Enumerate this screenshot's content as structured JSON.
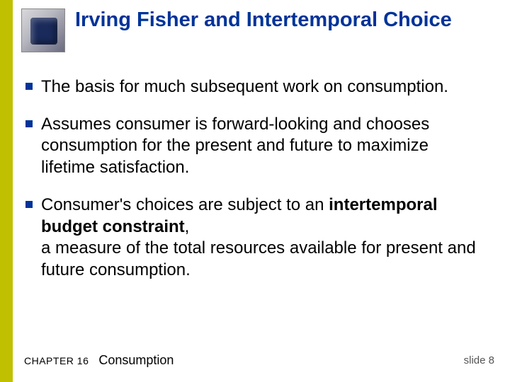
{
  "colors": {
    "side_bar": "#c0c000",
    "title": "#003399",
    "bullet": "#003399",
    "body_text": "#000000",
    "slide_num": "#555555",
    "background": "#ffffff"
  },
  "title": "Irving Fisher and Intertemporal Choice",
  "bullets": [
    {
      "segments": [
        {
          "text": "The basis for much subsequent work on consumption.",
          "bold": false
        }
      ]
    },
    {
      "segments": [
        {
          "text": "Assumes consumer is forward-looking and chooses consumption for the present and future to maximize lifetime satisfaction.",
          "bold": false
        }
      ]
    },
    {
      "segments": [
        {
          "text": "Consumer's choices are subject to an ",
          "bold": false
        },
        {
          "text": "intertemporal budget constraint",
          "bold": true
        },
        {
          "text": ",\na measure of the total resources available for present and future consumption.",
          "bold": false
        }
      ]
    }
  ],
  "footer": {
    "chapter": "CHAPTER 16",
    "topic": "Consumption"
  },
  "slide_number": "slide 8"
}
